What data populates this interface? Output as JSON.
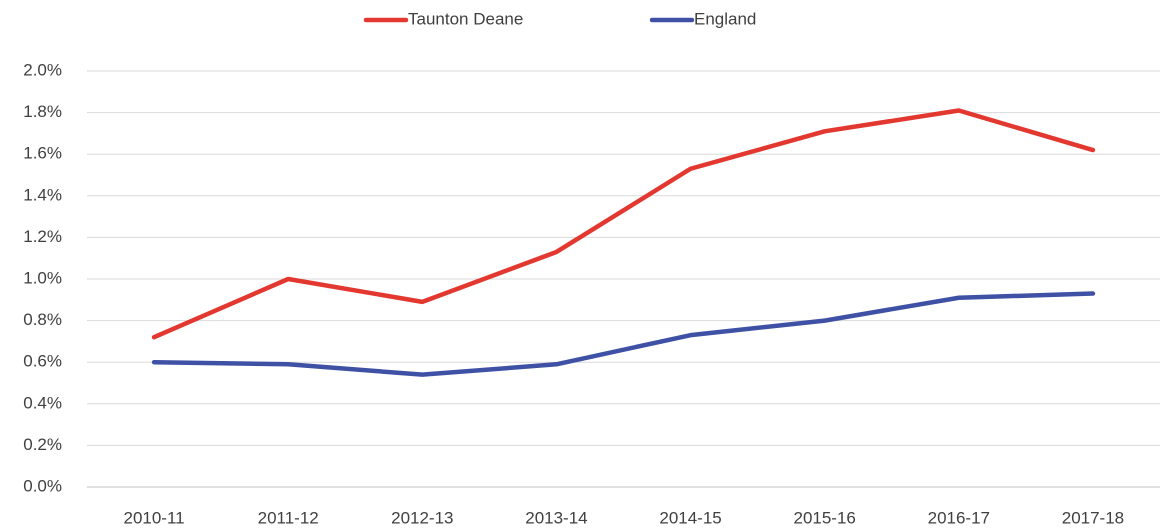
{
  "chart_data": {
    "type": "line",
    "categories": [
      "2010-11",
      "2011-12",
      "2012-13",
      "2013-14",
      "2014-15",
      "2015-16",
      "2016-17",
      "2017-18"
    ],
    "series": [
      {
        "name": "Taunton Deane",
        "color": "#e2382f",
        "values": [
          0.72,
          1.0,
          0.89,
          1.13,
          1.53,
          1.71,
          1.81,
          1.62
        ]
      },
      {
        "name": "England",
        "color": "#3f51a5",
        "values": [
          0.6,
          0.59,
          0.54,
          0.59,
          0.73,
          0.8,
          0.91,
          0.93
        ]
      }
    ],
    "ylim": [
      0,
      2
    ],
    "yticks": [
      {
        "value": 0,
        "label": "0.0%"
      },
      {
        "value": 0.2,
        "label": "0.2%"
      },
      {
        "value": 0.4,
        "label": "0.4%"
      },
      {
        "value": 0.6,
        "label": "0.6%"
      },
      {
        "value": 0.8,
        "label": "0.8%"
      },
      {
        "value": 1.0,
        "label": "1.0%"
      },
      {
        "value": 1.2,
        "label": "1.2%"
      },
      {
        "value": 1.4,
        "label": "1.4%"
      },
      {
        "value": 1.6,
        "label": "1.6%"
      },
      {
        "value": 1.8,
        "label": "1.8%"
      },
      {
        "value": 2.0,
        "label": "2.0%"
      }
    ],
    "grid": true,
    "legend": "top"
  }
}
